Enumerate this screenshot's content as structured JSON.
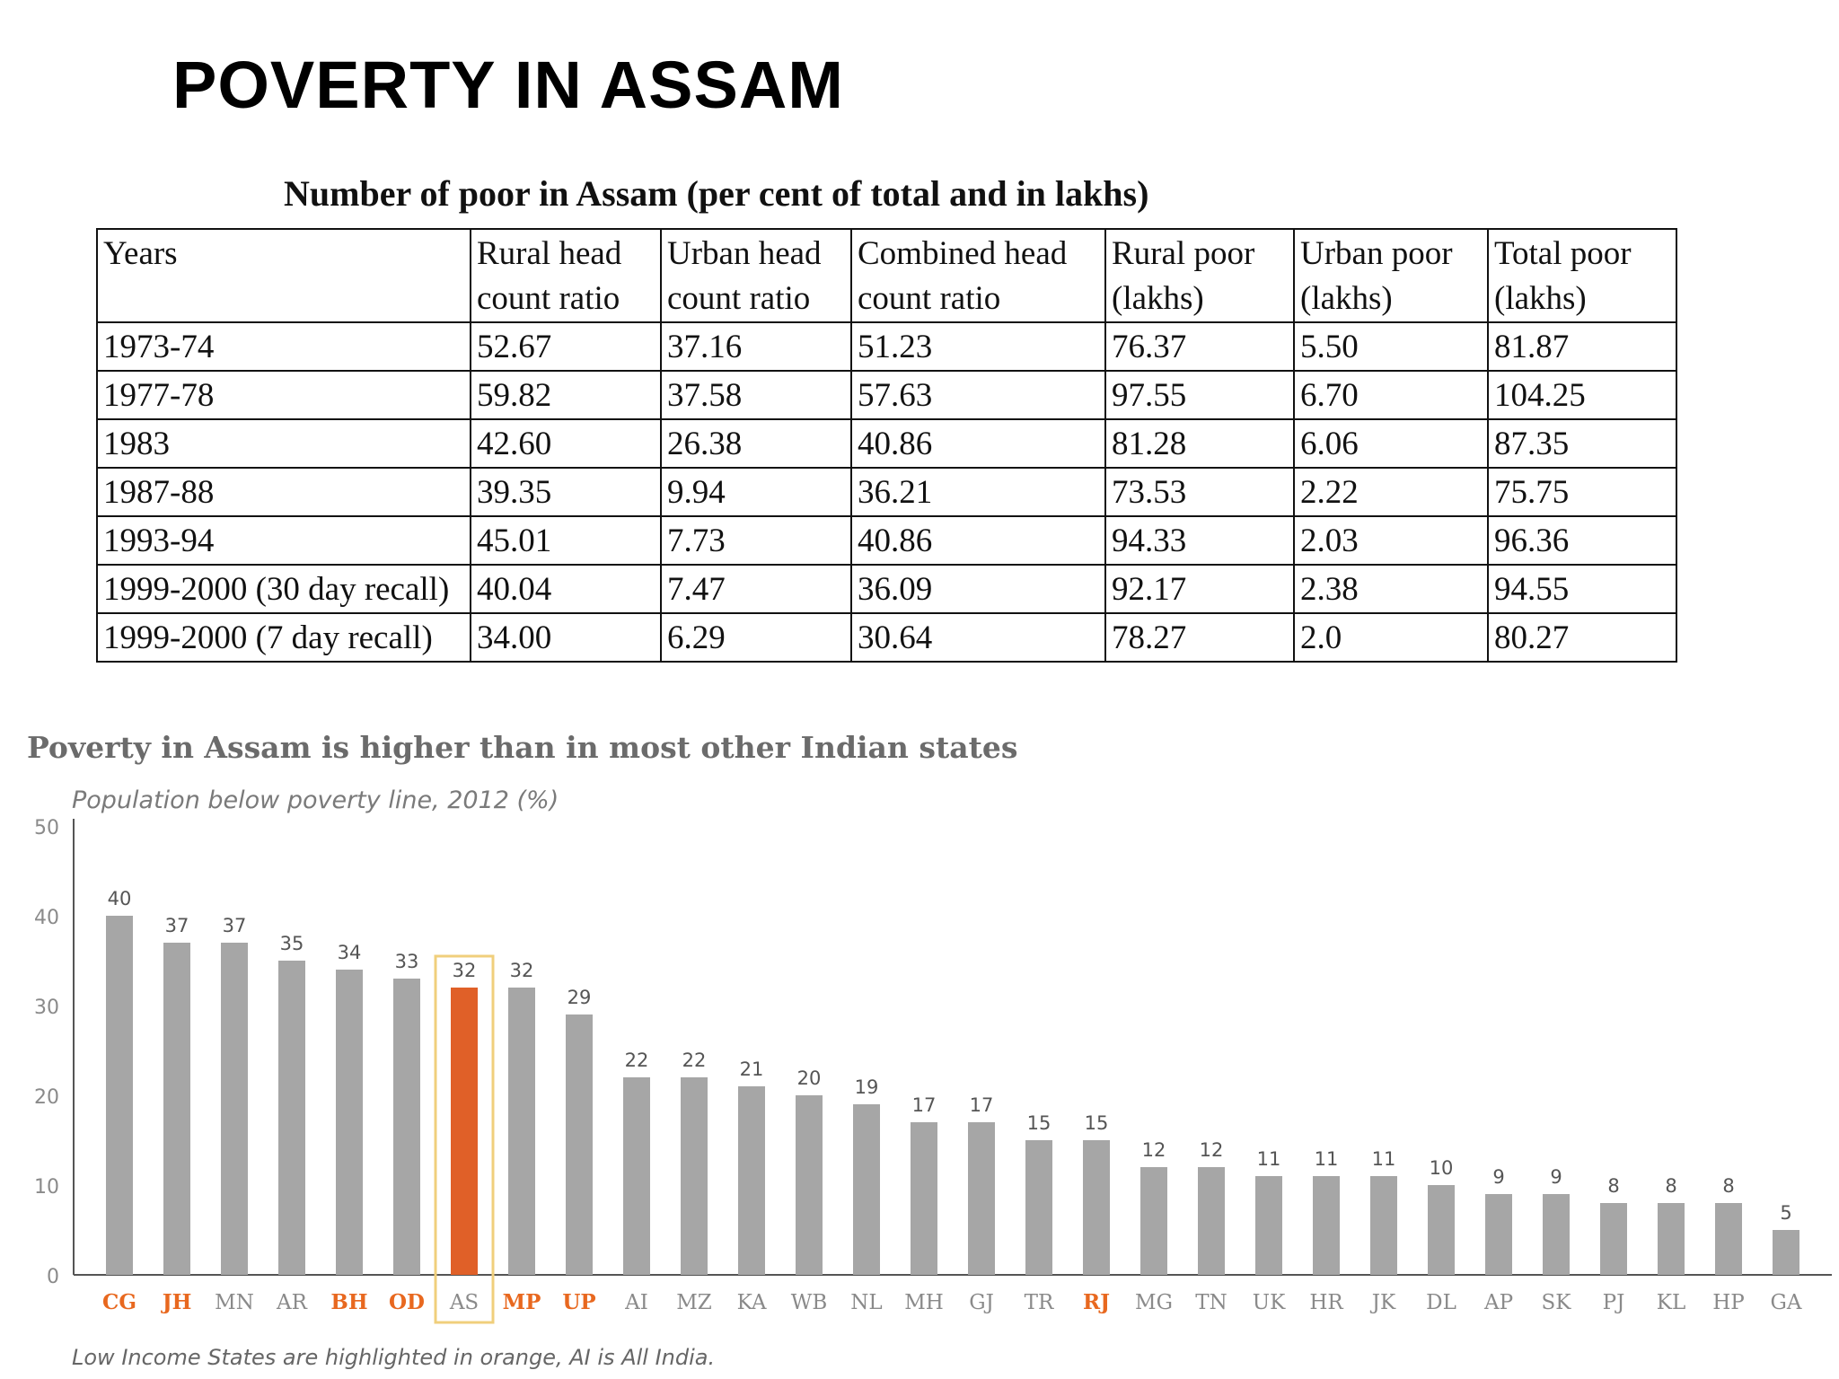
{
  "slide": {
    "title": "POVERTY IN ASSAM"
  },
  "table": {
    "caption": "Number of poor in Assam (per cent of total and in lakhs)",
    "headers": [
      "Years",
      "Rural head count ratio",
      "Urban head count ratio",
      "Combined head count ratio",
      "Rural poor (lakhs)",
      "Urban poor (lakhs)",
      "Total poor (lakhs)"
    ],
    "rows": [
      [
        "1973-74",
        "52.67",
        "37.16",
        "51.23",
        "76.37",
        "5.50",
        "81.87"
      ],
      [
        "1977-78",
        "59.82",
        "37.58",
        "57.63",
        "97.55",
        "6.70",
        "104.25"
      ],
      [
        "1983",
        "42.60",
        "26.38",
        "40.86",
        "81.28",
        "6.06",
        "87.35"
      ],
      [
        "1987-88",
        "39.35",
        "9.94",
        "36.21",
        "73.53",
        "2.22",
        "75.75"
      ],
      [
        "1993-94",
        "45.01",
        "7.73",
        "40.86",
        "94.33",
        "2.03",
        "96.36"
      ],
      [
        "1999-2000 (30 day recall)",
        "40.04",
        "7.47",
        "36.09",
        "92.17",
        "2.38",
        "94.55"
      ],
      [
        "1999-2000 (7 day recall)",
        "34.00",
        "6.29",
        "30.64",
        "78.27",
        "2.0",
        "80.27"
      ]
    ]
  },
  "chart_data": {
    "type": "bar",
    "title": "Poverty in Assam is higher than in most other Indian states",
    "subtitle": "Population below poverty line, 2012 (%)",
    "footnote": "Low Income States are highlighted in orange, AI is All India.",
    "categories": [
      "CG",
      "JH",
      "MN",
      "AR",
      "BH",
      "OD",
      "AS",
      "MP",
      "UP",
      "AI",
      "MZ",
      "KA",
      "WB",
      "NL",
      "MH",
      "GJ",
      "TR",
      "RJ",
      "MG",
      "TN",
      "UK",
      "HR",
      "JK",
      "DL",
      "AP",
      "SK",
      "PJ",
      "KL",
      "HP",
      "GA"
    ],
    "values": [
      40,
      37,
      37,
      35,
      34,
      33,
      32,
      32,
      29,
      22,
      22,
      21,
      20,
      19,
      17,
      17,
      15,
      15,
      12,
      12,
      11,
      11,
      11,
      10,
      9,
      9,
      8,
      8,
      8,
      5
    ],
    "low_income_states": [
      "CG",
      "JH",
      "BH",
      "OD",
      "MP",
      "UP",
      "RJ"
    ],
    "highlighted_category": "AS",
    "ylim": [
      0,
      50
    ],
    "yticks": [
      0,
      10,
      20,
      30,
      40,
      50
    ],
    "grid": false,
    "colors": {
      "bar": "#a6a6a6",
      "highlight_bar": "#e06028",
      "highlight_box": "#f0cf7c",
      "low_income_label": "#e8681f",
      "label": "#8a8a8a",
      "axis": "#555555"
    }
  }
}
